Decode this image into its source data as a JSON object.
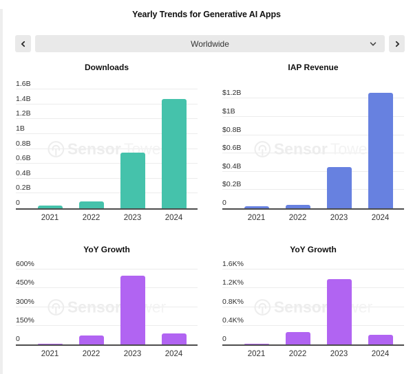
{
  "header": {
    "title": "Yearly Trends for Generative AI Apps"
  },
  "selector": {
    "value": "Worldwide",
    "prev_icon": "chevron-left",
    "next_icon": "chevron-right",
    "caret_icon": "chevron-down"
  },
  "watermark": {
    "bold": "Sensor",
    "light": "Tower"
  },
  "colors": {
    "downloads_bar": "#45c2ab",
    "revenue_bar": "#6781e0",
    "growth_bar": "#b164f2",
    "axis_line": "#4c4c4c",
    "gridline": "#ececec",
    "control_bg": "#e9e9e9"
  },
  "chart_data": [
    {
      "type": "bar",
      "title": "Downloads",
      "categories": [
        "2021",
        "2022",
        "2023",
        "2024"
      ],
      "values": [
        0.04,
        0.09,
        0.75,
        1.47
      ],
      "ylim": [
        0,
        1.6
      ],
      "plot_max": 1.6,
      "ytick_values": [
        0,
        0.2,
        0.4,
        0.6,
        0.8,
        1.0,
        1.2,
        1.4,
        1.6
      ],
      "ytick_labels": [
        "0",
        "0.2B",
        "0.4B",
        "0.6B",
        "0.8B",
        "1B",
        "1.2B",
        "1.4B",
        "1.6B"
      ],
      "color": "#45c2ab",
      "grid": true,
      "legend": "none"
    },
    {
      "type": "bar",
      "title": "IAP Revenue",
      "categories": [
        "2021",
        "2022",
        "2023",
        "2024"
      ],
      "values": [
        0.02,
        0.04,
        0.45,
        1.26
      ],
      "ylim": [
        0,
        1.2
      ],
      "plot_max": 1.3,
      "ytick_values": [
        0,
        0.2,
        0.4,
        0.6,
        0.8,
        1.0,
        1.2
      ],
      "ytick_labels": [
        "0",
        "$0.2B",
        "$0.4B",
        "$0.6B",
        "$0.8B",
        "$1B",
        "$1.2B"
      ],
      "color": "#6781e0",
      "grid": true,
      "legend": "none"
    },
    {
      "type": "bar",
      "title": "YoY Growth",
      "categories": [
        "2021",
        "2022",
        "2023",
        "2024"
      ],
      "values": [
        8,
        70,
        548,
        88
      ],
      "ylim": [
        0,
        600
      ],
      "plot_max": 600,
      "ytick_values": [
        0,
        150,
        300,
        450,
        600
      ],
      "ytick_labels": [
        "0",
        "150%",
        "300%",
        "450%",
        "600%"
      ],
      "color": "#b164f2",
      "grid": true,
      "legend": "none"
    },
    {
      "type": "bar",
      "title": "YoY Growth",
      "categories": [
        "2021",
        "2022",
        "2023",
        "2024"
      ],
      "values": [
        15,
        265,
        1390,
        200
      ],
      "ylim": [
        0,
        1600
      ],
      "plot_max": 1600,
      "ytick_values": [
        0,
        400,
        800,
        1200,
        1600
      ],
      "ytick_labels": [
        "0",
        "0.4K%",
        "0.8K%",
        "1.2K%",
        "1.6K%"
      ],
      "color": "#b164f2",
      "grid": true,
      "legend": "none"
    }
  ]
}
